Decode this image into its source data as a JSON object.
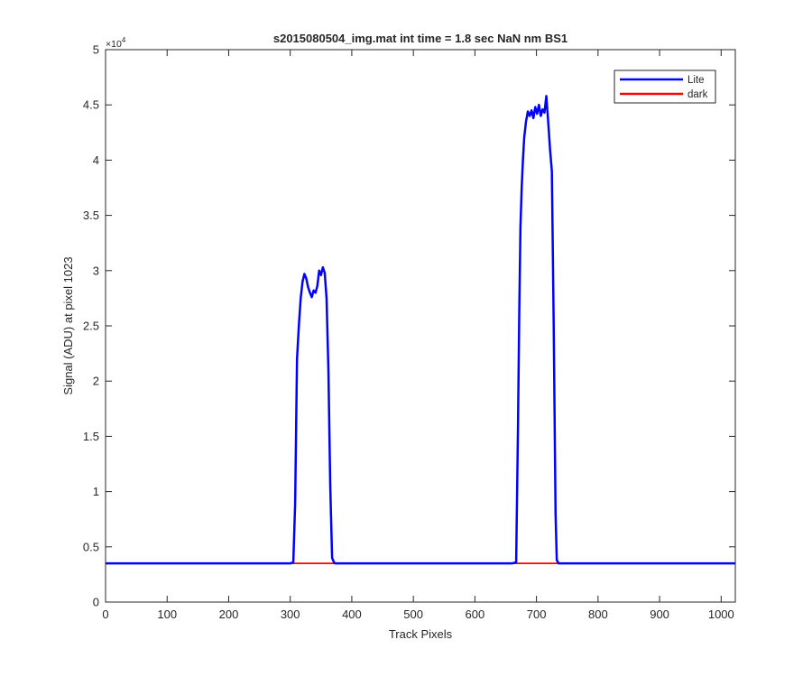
{
  "chart_data": {
    "type": "line",
    "title": "s2015080504_img.mat int time = 1.8 sec  NaN nm BS1",
    "xlabel": "Track Pixels",
    "ylabel": "Signal (ADU) at pixel 1023",
    "y_exponent_label": "×10",
    "y_exponent_power": "4",
    "xlim": [
      0,
      1023
    ],
    "ylim": [
      0,
      5
    ],
    "y_scale_factor": 10000,
    "x_ticks": [
      0,
      100,
      200,
      300,
      400,
      500,
      600,
      700,
      800,
      900,
      1000
    ],
    "x_tick_labels": [
      "0",
      "100",
      "200",
      "300",
      "400",
      "500",
      "600",
      "700",
      "800",
      "900",
      "1000"
    ],
    "y_ticks": [
      0,
      0.5,
      1,
      1.5,
      2,
      2.5,
      3,
      3.5,
      4,
      4.5,
      5
    ],
    "y_tick_labels": [
      "0",
      "0.5",
      "1",
      "1.5",
      "2",
      "2.5",
      "3",
      "3.5",
      "4",
      "4.5",
      "5"
    ],
    "grid": false,
    "legend_placement": "top-right",
    "series": [
      {
        "name": "Lite",
        "color": "#0000ff",
        "x": [
          0,
          300,
          305,
          308,
          311,
          314,
          317,
          320,
          323,
          326,
          329,
          332,
          335,
          338,
          341,
          344,
          347,
          350,
          353,
          356,
          359,
          362,
          365,
          368,
          371,
          373,
          376,
          380,
          500,
          660,
          667,
          670,
          672,
          674,
          676,
          678,
          680,
          683,
          686,
          689,
          692,
          695,
          698,
          701,
          704,
          707,
          710,
          713,
          716,
          719,
          722,
          725,
          728,
          731,
          733,
          736,
          740,
          1023
        ],
        "y": [
          0.35,
          0.35,
          0.36,
          0.9,
          2.2,
          2.5,
          2.75,
          2.9,
          2.97,
          2.93,
          2.85,
          2.8,
          2.76,
          2.82,
          2.8,
          2.86,
          3.0,
          2.96,
          3.03,
          2.98,
          2.75,
          2.1,
          1.05,
          0.4,
          0.36,
          0.35,
          0.35,
          0.35,
          0.35,
          0.35,
          0.36,
          1.6,
          2.6,
          3.4,
          3.75,
          4.0,
          4.2,
          4.35,
          4.44,
          4.4,
          4.45,
          4.38,
          4.48,
          4.42,
          4.5,
          4.4,
          4.46,
          4.43,
          4.58,
          4.35,
          4.1,
          3.9,
          2.5,
          0.8,
          0.38,
          0.35,
          0.35,
          0.35
        ]
      },
      {
        "name": "dark",
        "color": "#ff0000",
        "x": [
          0,
          100,
          200,
          300,
          400,
          500,
          600,
          700,
          800,
          900,
          1023
        ],
        "y": [
          0.35,
          0.35,
          0.35,
          0.35,
          0.35,
          0.35,
          0.35,
          0.35,
          0.35,
          0.35,
          0.35
        ]
      }
    ]
  }
}
